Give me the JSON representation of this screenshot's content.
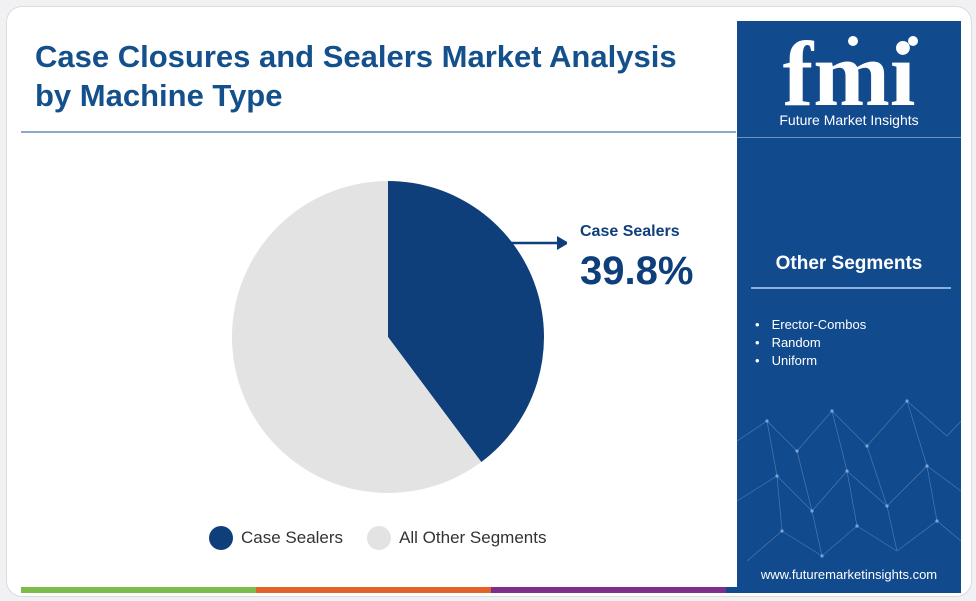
{
  "title": "Case Closures and Sealers Market Analysis by Machine Type",
  "brand": {
    "logo_letters": "fmi",
    "name": "Future Market Insights",
    "website": "www.futuremarketinsights.com"
  },
  "sidebar": {
    "segments_title": "Other Segments",
    "segments": [
      "Erector-Combos",
      "Random",
      "Uniform"
    ]
  },
  "callout": {
    "label": "Case Sealers",
    "value": "39.8%"
  },
  "colors": {
    "case_sealers": "#0f3f7a",
    "other_segments": "#e3e3e3",
    "title": "#14508c",
    "sidebar_bg": "#124a8e",
    "stripe": [
      "#7cbd4a",
      "#e2632a",
      "#7d2d8c",
      "#124a8e"
    ]
  },
  "chart_data": {
    "type": "pie",
    "title": "Case Closures and Sealers Market Analysis by Machine Type",
    "slices": [
      {
        "label": "Case Sealers",
        "value": 39.8,
        "color": "#0f3f7a"
      },
      {
        "label": "All Other Segments",
        "value": 60.2,
        "color": "#e3e3e3"
      }
    ],
    "legend_position": "bottom",
    "annotations": [
      {
        "slice": "Case Sealers",
        "text": "39.8%"
      }
    ]
  }
}
